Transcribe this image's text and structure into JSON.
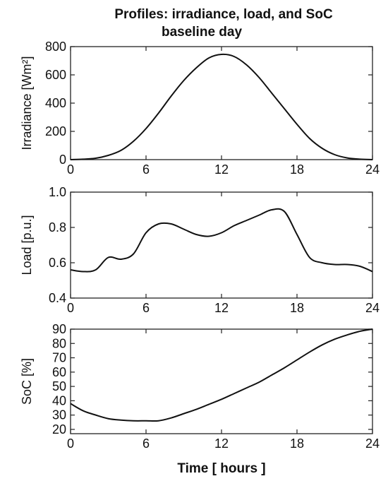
{
  "figure": {
    "title_line1": "Profiles: irradiance, load, and SoC",
    "title_line2": "baseline day",
    "xlabel": "Time [ hours ]"
  },
  "chart_data": [
    {
      "type": "line",
      "ylabel": "Irradiance [Wm²]",
      "xlim": [
        0,
        24
      ],
      "ylim": [
        0,
        800
      ],
      "xticks": [
        0,
        6,
        12,
        18,
        24
      ],
      "yticks": [
        0,
        200,
        400,
        600,
        800
      ],
      "grid": false,
      "series": [
        {
          "x": [
            0,
            1,
            2,
            3,
            4,
            5,
            6,
            7,
            8,
            9,
            10,
            11,
            12,
            13,
            14,
            15,
            16,
            17,
            18,
            19,
            20,
            21,
            22,
            23,
            24
          ],
          "y": [
            0,
            3,
            10,
            30,
            65,
            130,
            220,
            330,
            450,
            560,
            650,
            720,
            745,
            730,
            670,
            580,
            470,
            360,
            250,
            150,
            80,
            35,
            12,
            3,
            0
          ]
        }
      ]
    },
    {
      "type": "line",
      "ylabel": "Load [p.u.]",
      "xlim": [
        0,
        24
      ],
      "ylim": [
        0.4,
        1.0
      ],
      "xticks": [
        0,
        6,
        12,
        18,
        24
      ],
      "yticks": [
        0.4,
        0.6,
        0.8,
        1.0
      ],
      "grid": false,
      "series": [
        {
          "x": [
            0,
            1,
            2,
            3,
            4,
            5,
            6,
            7,
            8,
            9,
            10,
            11,
            12,
            13,
            14,
            15,
            16,
            17,
            18,
            19,
            20,
            21,
            22,
            23,
            24
          ],
          "y": [
            0.56,
            0.55,
            0.56,
            0.63,
            0.62,
            0.65,
            0.77,
            0.82,
            0.82,
            0.79,
            0.76,
            0.75,
            0.77,
            0.81,
            0.84,
            0.87,
            0.9,
            0.89,
            0.76,
            0.63,
            0.6,
            0.59,
            0.59,
            0.58,
            0.55
          ]
        }
      ]
    },
    {
      "type": "line",
      "ylabel": "SoC [%]",
      "xlim": [
        0,
        24
      ],
      "ylim": [
        17,
        90
      ],
      "xticks": [
        0,
        6,
        12,
        18,
        24
      ],
      "yticks": [
        20,
        30,
        40,
        50,
        60,
        70,
        80,
        90
      ],
      "grid": false,
      "series": [
        {
          "x": [
            0,
            1,
            2,
            3,
            4,
            5,
            6,
            7,
            8,
            9,
            10,
            11,
            12,
            13,
            14,
            15,
            16,
            17,
            18,
            19,
            20,
            21,
            22,
            23,
            24
          ],
          "y": [
            38,
            33,
            30,
            27.5,
            26.5,
            26,
            26,
            26,
            28,
            31,
            34,
            37.5,
            41,
            45,
            49,
            53,
            58,
            63,
            68.5,
            74,
            79,
            83,
            86,
            88.5,
            90
          ]
        }
      ]
    }
  ]
}
